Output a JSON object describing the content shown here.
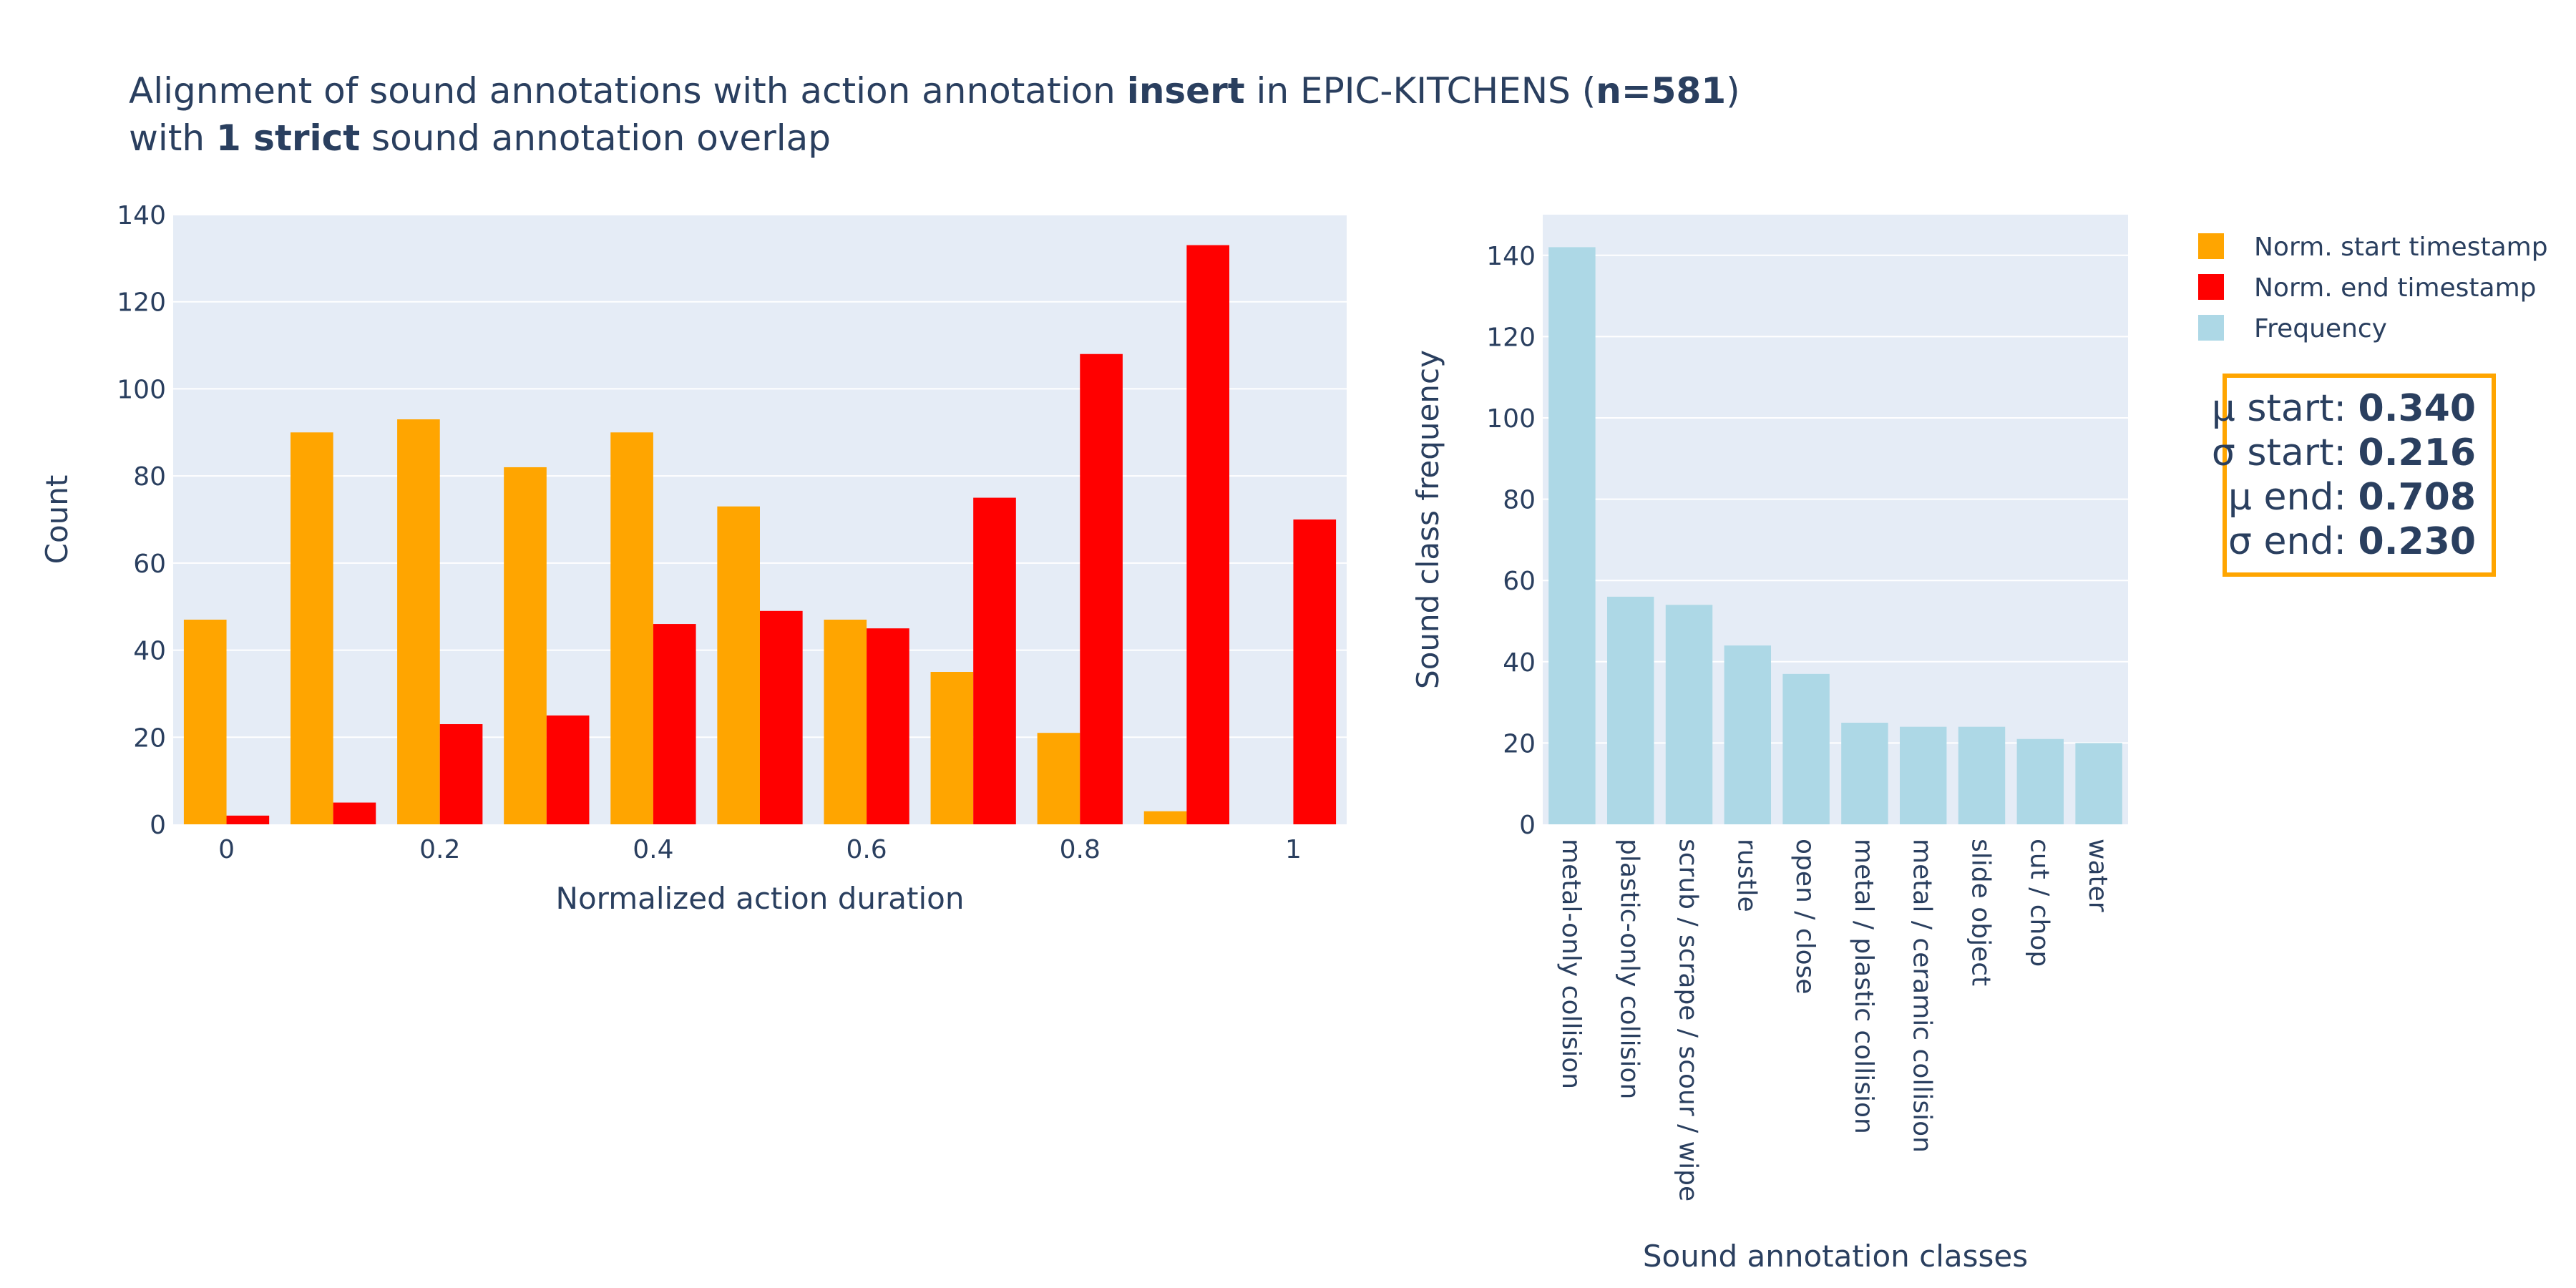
{
  "title": {
    "line1": [
      {
        "text": "Alignment of sound annotations with action annotation ",
        "bold": false
      },
      {
        "text": "insert",
        "bold": true
      },
      {
        "text": " in EPIC-KITCHENS (",
        "bold": false
      },
      {
        "text": "n=581",
        "bold": true
      },
      {
        "text": ")",
        "bold": false
      }
    ],
    "line2": [
      {
        "text": "with ",
        "bold": false
      },
      {
        "text": "1 strict",
        "bold": true
      },
      {
        "text": " sound annotation overlap",
        "bold": false
      }
    ]
  },
  "colors": {
    "start": "#ffa500",
    "end": "#ff0000",
    "frequency": "#add8e6",
    "plot_bg": "#e5ecf6",
    "grid": "#ffffff",
    "text": "#2a3f5f"
  },
  "legend": [
    {
      "label": "Norm. start timestamp",
      "color": "#ffa500"
    },
    {
      "label": "Norm. end timestamp",
      "color": "#ff0000"
    },
    {
      "label": "Frequency",
      "color": "#add8e6"
    }
  ],
  "stats": [
    {
      "label": "μ start: ",
      "value": "0.340"
    },
    {
      "label": "σ start: ",
      "value": "0.216"
    },
    {
      "label": "μ end: ",
      "value": "0.708"
    },
    {
      "label": "σ end: ",
      "value": "0.230"
    }
  ],
  "chart_data": [
    {
      "type": "bar",
      "xlabel": "Normalized action duration",
      "ylabel": "Count",
      "bin_edges": [
        -0.05,
        0.05,
        0.15,
        0.25,
        0.35,
        0.45,
        0.55,
        0.65,
        0.75,
        0.85,
        0.95,
        1.05
      ],
      "xticks": [
        "0",
        "0.2",
        "0.4",
        "0.6",
        "0.8",
        "1"
      ],
      "xtick_values": [
        0,
        0.2,
        0.4,
        0.6,
        0.8,
        1
      ],
      "yticks": [
        0,
        20,
        40,
        60,
        80,
        100,
        120,
        140
      ],
      "ylim": [
        0,
        140
      ],
      "series": [
        {
          "name": "Norm. start timestamp",
          "values": [
            47,
            90,
            93,
            82,
            90,
            73,
            47,
            35,
            21,
            3,
            0
          ]
        },
        {
          "name": "Norm. end timestamp",
          "values": [
            2,
            5,
            23,
            25,
            46,
            49,
            45,
            75,
            108,
            133,
            70
          ]
        }
      ],
      "grid": true
    },
    {
      "type": "bar",
      "xlabel": "Sound annotation classes",
      "ylabel": "Sound class frequency",
      "categories": [
        "metal-only collision",
        "plastic-only collision",
        "scrub / scrape / scour / wipe",
        "rustle",
        "open / close",
        "metal / plastic collision",
        "metal / ceramic collision",
        "slide object",
        "cut / chop",
        "water"
      ],
      "series": [
        {
          "name": "Frequency",
          "values": [
            142,
            56,
            54,
            44,
            37,
            25,
            24,
            24,
            21,
            20
          ]
        }
      ],
      "yticks": [
        0,
        20,
        40,
        60,
        80,
        100,
        120,
        140
      ],
      "ylim": [
        0,
        150
      ],
      "grid": true
    }
  ]
}
